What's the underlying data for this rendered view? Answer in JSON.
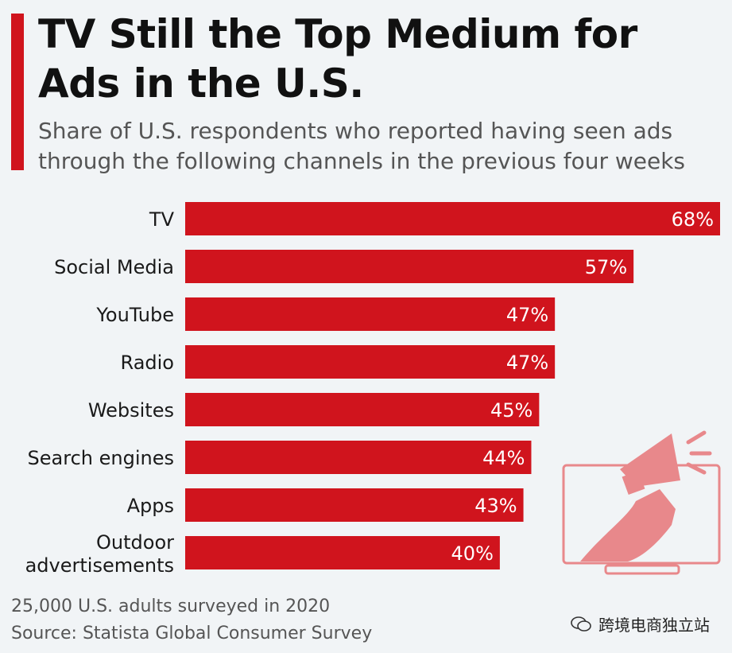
{
  "header": {
    "title": "TV Still the Top Medium for Ads in the U.S.",
    "subtitle": "Share of U.S. respondents who reported having seen ads through the following channels in the previous four weeks"
  },
  "chart_data": {
    "type": "bar",
    "orientation": "horizontal",
    "categories": [
      "TV",
      "Social Media",
      "YouTube",
      "Radio",
      "Websites",
      "Search engines",
      "Apps",
      "Outdoor advertisements"
    ],
    "values": [
      68,
      57,
      47,
      47,
      45,
      44,
      43,
      40
    ],
    "value_labels": [
      "68%",
      "57%",
      "47%",
      "47%",
      "45%",
      "44%",
      "43%",
      "40%"
    ],
    "unit": "%",
    "xlim": [
      0,
      68
    ],
    "grid": false,
    "legend": "none",
    "bar_color": "#d0141d"
  },
  "footer": {
    "note": "25,000 U.S. adults surveyed in 2020",
    "source": "Source: Statista Global Consumer Survey"
  },
  "watermark": {
    "text": "跨境电商独立站"
  },
  "colors": {
    "accent": "#d0141d",
    "background": "#f1f4f6",
    "illustration": "#e8888b"
  }
}
